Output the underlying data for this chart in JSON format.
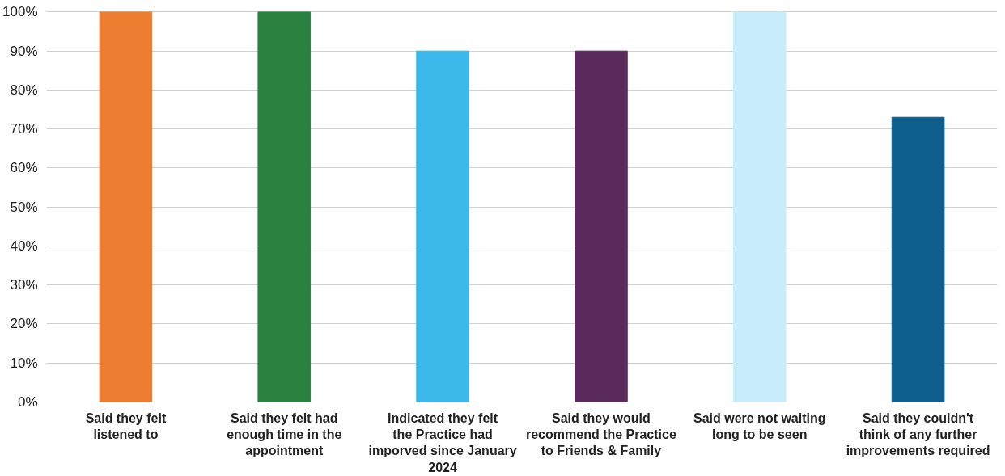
{
  "chart_data": {
    "type": "bar",
    "categories": [
      "Said they felt listened to",
      "Said they felt had enough time in the appointment",
      "Indicated they felt the Practice had imporved since January 2024",
      "Said they would recommend the Practice to Friends & Family",
      "Said were not waiting long to be seen",
      "Said they couldn't think of any further improvements required"
    ],
    "values": [
      100,
      100,
      90,
      90,
      100,
      73
    ],
    "colors": [
      "#ed7d31",
      "#2b8140",
      "#3cb8ea",
      "#5a2a5c",
      "#c8ecfb",
      "#0e5f8e"
    ],
    "ylim": [
      0,
      100
    ],
    "yticks": [
      {
        "value": 0,
        "label": "0%"
      },
      {
        "value": 10,
        "label": "10%"
      },
      {
        "value": 20,
        "label": "20%"
      },
      {
        "value": 30,
        "label": "30%"
      },
      {
        "value": 40,
        "label": "40%"
      },
      {
        "value": 50,
        "label": "50%"
      },
      {
        "value": 60,
        "label": "60%"
      },
      {
        "value": 70,
        "label": "70%"
      },
      {
        "value": 80,
        "label": "80%"
      },
      {
        "value": 90,
        "label": "90%"
      },
      {
        "value": 100,
        "label": "100%"
      }
    ],
    "grid": "y"
  }
}
